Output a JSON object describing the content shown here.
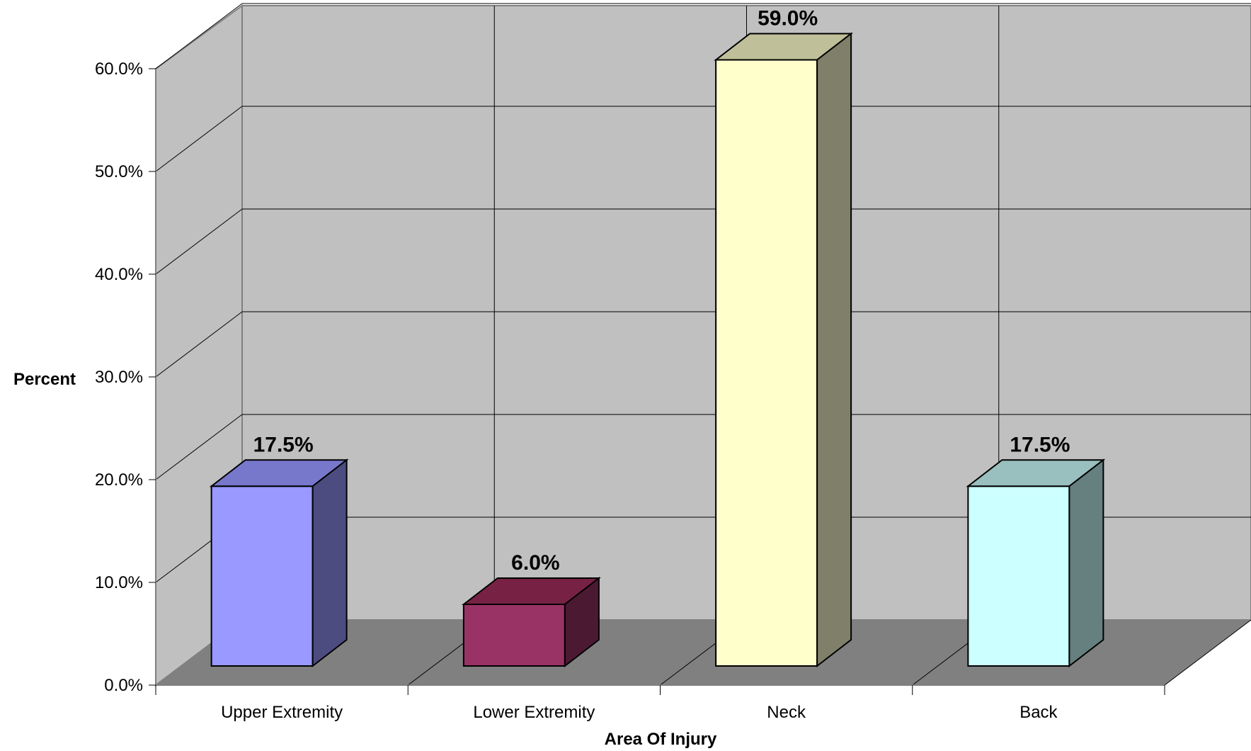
{
  "chart_data": {
    "type": "bar",
    "style": "3d-column",
    "title": "",
    "xlabel": "Area Of Injury",
    "ylabel": "Percent",
    "categories": [
      "Upper Extremity",
      "Lower Extremity",
      "Neck",
      "Back"
    ],
    "values": [
      17.5,
      6.0,
      59.0,
      17.5
    ],
    "data_labels": [
      "17.5%",
      "6.0%",
      "59.0%",
      "17.5%"
    ],
    "ylim": [
      0,
      60
    ],
    "y_ticks": [
      0,
      10,
      20,
      30,
      40,
      50,
      60
    ],
    "y_tick_labels": [
      "0.0%",
      "10.0%",
      "20.0%",
      "30.0%",
      "40.0%",
      "50.0%",
      "60.0%"
    ],
    "grid": true,
    "legend": "none",
    "colors": {
      "walls": "#c0c0c0",
      "floor": "#808080",
      "bars": [
        "#9999ff",
        "#993366",
        "#ffffcc",
        "#ccffff"
      ],
      "bar_tops": [
        "#7777cc",
        "#772244",
        "#bfbf99",
        "#99bfbf"
      ],
      "bar_sides": [
        "#4c4c80",
        "#4c1933",
        "#80806a",
        "#668080"
      ]
    }
  }
}
